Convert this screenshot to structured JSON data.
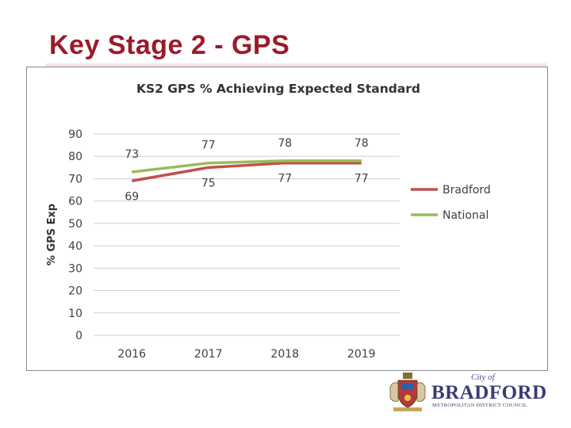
{
  "slide": {
    "title": "Key Stage 2 - GPS"
  },
  "logo": {
    "city_of": "City of",
    "name": "BRADFORD",
    "subtitle": "METROPOLITAN DISTRICT COUNCIL",
    "icon": "coat-of-arms-crest"
  },
  "chart_data": {
    "type": "line",
    "title": "KS2 GPS % Achieving Expected Standard",
    "xlabel": "",
    "ylabel": "% GPS Exp",
    "categories": [
      "2016",
      "2017",
      "2018",
      "2019"
    ],
    "ylim": [
      0,
      90
    ],
    "yticks": [
      0,
      10,
      20,
      30,
      40,
      50,
      60,
      70,
      80,
      90
    ],
    "grid": true,
    "legend_position": "right",
    "series": [
      {
        "name": "Bradford",
        "values": [
          69,
          75,
          77,
          77
        ],
        "color": "#c0504d",
        "label_position": "below"
      },
      {
        "name": "National",
        "values": [
          73,
          77,
          78,
          78
        ],
        "color": "#9bbb59",
        "label_position": "above"
      }
    ]
  }
}
